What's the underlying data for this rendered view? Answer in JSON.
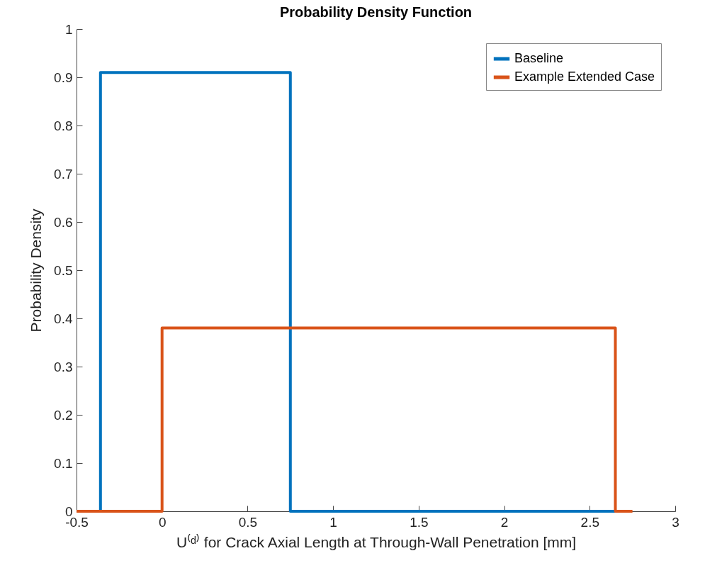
{
  "chart_data": {
    "type": "line",
    "title": "Probability Density Function",
    "xlabel": "U⁽ᵈ⁾ for Crack Axial Length at Through-Wall Penetration [mm]",
    "ylabel": "Probability Density",
    "series": [
      {
        "name": "Baseline",
        "color": "#0072bd",
        "x": [
          -0.36,
          -0.36,
          0.75,
          0.75,
          2.65
        ],
        "values": [
          0,
          0.91,
          0.91,
          0,
          0
        ]
      },
      {
        "name": "Example Extended Case",
        "color": "#d95319",
        "x": [
          -0.5,
          0,
          0,
          2.65,
          2.65,
          2.75
        ],
        "values": [
          0,
          0,
          0.38,
          0.38,
          0,
          0
        ]
      }
    ],
    "xlim": [
      -0.5,
      3
    ],
    "xticks": [
      -0.5,
      0,
      0.5,
      1,
      1.5,
      2,
      2.5,
      3
    ],
    "ylim": [
      0,
      1
    ],
    "yticks": [
      0,
      0.1,
      0.2,
      0.3,
      0.4,
      0.5,
      0.6,
      0.7,
      0.8,
      0.9,
      1
    ],
    "grid": false,
    "legend": "top right",
    "line_style": "solid",
    "marker": "none"
  }
}
